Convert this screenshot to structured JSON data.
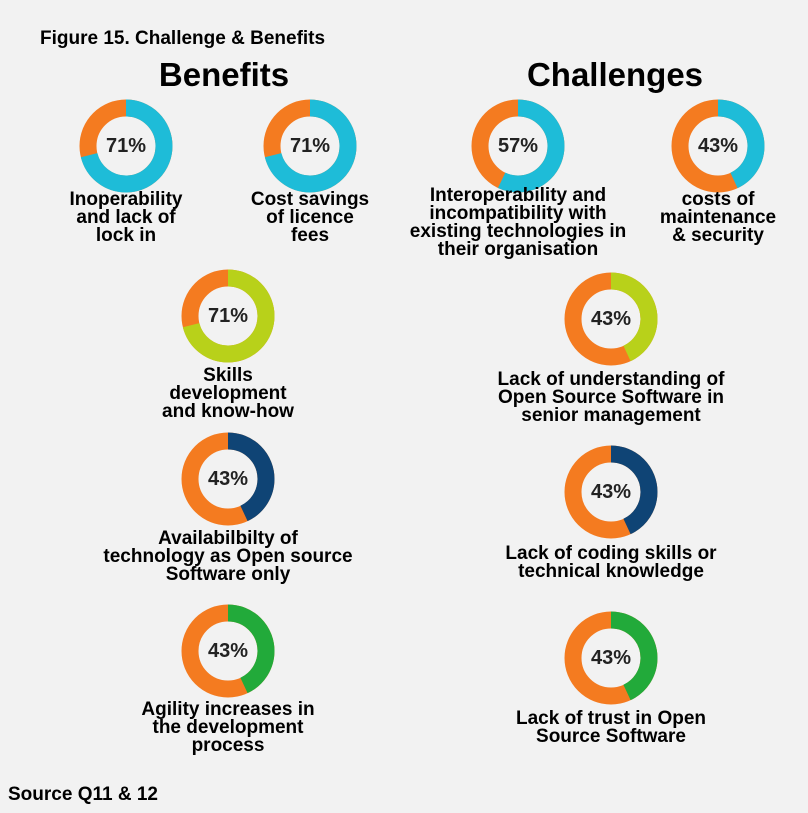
{
  "figure_title": "Figure 15. Challenge & Benefits",
  "source": "Source Q11 & 12",
  "colors": {
    "remainder": "#f47b20",
    "cyan": "#1ebcd8",
    "lime": "#b8d11a",
    "navy": "#0f4475",
    "green": "#22aa3a"
  },
  "chart_data": {
    "type": "donut",
    "sections": [
      {
        "heading": "Benefits",
        "items": [
          {
            "label": "Inoperability\nand lack of\nlock in",
            "value": 71,
            "display": "71%",
            "color": "cyan"
          },
          {
            "label": "Cost savings\nof licence\nfees",
            "value": 71,
            "display": "71%",
            "color": "cyan"
          },
          {
            "label": "Skills\ndevelopment\nand know-how",
            "value": 71,
            "display": "71%",
            "color": "lime"
          },
          {
            "label": "Availabilbilty of\ntechnology as Open source\nSoftware only",
            "value": 43,
            "display": "43%",
            "color": "navy"
          },
          {
            "label": "Agility increases in\nthe development\nprocess",
            "value": 43,
            "display": "43%",
            "color": "green"
          }
        ]
      },
      {
        "heading": "Challenges",
        "items": [
          {
            "label": "Interoperability and\nincompatibility with\nexisting technologies in\ntheir organisation",
            "value": 57,
            "display": "57%",
            "color": "cyan"
          },
          {
            "label": "costs of\nmaintenance\n& security",
            "value": 43,
            "display": "43%",
            "color": "cyan"
          },
          {
            "label": "Lack of understanding of\nOpen Source Software in\nsenior management",
            "value": 43,
            "display": "43%",
            "color": "lime"
          },
          {
            "label": "Lack of coding skills or\ntechnical knowledge",
            "value": 43,
            "display": "43%",
            "color": "navy"
          },
          {
            "label": "Lack of trust in Open\nSource Software",
            "value": 43,
            "display": "43%",
            "color": "green"
          }
        ]
      }
    ]
  }
}
